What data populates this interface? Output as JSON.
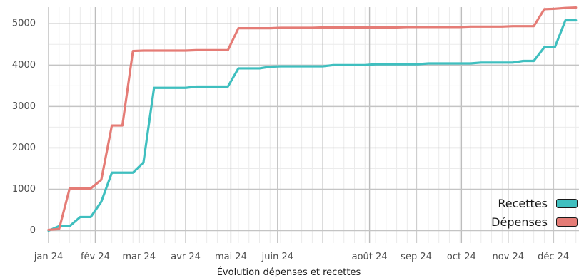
{
  "chart_data": {
    "type": "line",
    "title": "",
    "xlabel": "Évolution dépenses et recettes",
    "ylabel": "",
    "x": [
      "2024-01-01",
      "2024-01-08",
      "2024-01-15",
      "2024-01-22",
      "2024-01-29",
      "2024-02-05",
      "2024-02-12",
      "2024-02-19",
      "2024-02-26",
      "2024-03-04",
      "2024-03-11",
      "2024-03-18",
      "2024-03-25",
      "2024-04-01",
      "2024-04-08",
      "2024-04-15",
      "2024-04-22",
      "2024-04-29",
      "2024-05-06",
      "2024-05-13",
      "2024-05-20",
      "2024-05-27",
      "2024-06-03",
      "2024-06-10",
      "2024-06-17",
      "2024-06-24",
      "2024-07-01",
      "2024-07-08",
      "2024-07-15",
      "2024-07-22",
      "2024-07-29",
      "2024-08-05",
      "2024-08-12",
      "2024-08-19",
      "2024-08-26",
      "2024-09-02",
      "2024-09-09",
      "2024-09-16",
      "2024-09-23",
      "2024-09-30",
      "2024-10-07",
      "2024-10-14",
      "2024-10-21",
      "2024-10-28",
      "2024-11-04",
      "2024-11-11",
      "2024-11-18",
      "2024-11-25",
      "2024-12-02",
      "2024-12-09",
      "2024-12-16"
    ],
    "series": [
      {
        "name": "Recettes",
        "color": "#3fbfbf",
        "values": [
          0,
          110,
          110,
          330,
          330,
          700,
          1400,
          1400,
          1400,
          1650,
          3450,
          3450,
          3450,
          3450,
          3480,
          3480,
          3480,
          3480,
          3920,
          3920,
          3920,
          3960,
          3970,
          3970,
          3970,
          3970,
          3970,
          4000,
          4000,
          4000,
          4000,
          4020,
          4020,
          4020,
          4020,
          4020,
          4040,
          4040,
          4040,
          4040,
          4040,
          4060,
          4060,
          4060,
          4060,
          4100,
          4100,
          4430,
          4430,
          5080,
          5080
        ]
      },
      {
        "name": "Dépenses",
        "color": "#e57c76",
        "values": [
          20,
          40,
          1020,
          1020,
          1020,
          1230,
          2540,
          2540,
          4340,
          4350,
          4350,
          4350,
          4350,
          4350,
          4360,
          4360,
          4360,
          4360,
          4890,
          4890,
          4890,
          4890,
          4900,
          4900,
          4900,
          4900,
          4910,
          4910,
          4910,
          4910,
          4910,
          4910,
          4910,
          4910,
          4920,
          4920,
          4920,
          4920,
          4920,
          4920,
          4930,
          4930,
          4930,
          4930,
          4940,
          4940,
          4940,
          5350,
          5360,
          5380,
          5390
        ]
      }
    ],
    "y_ticks": [
      0,
      1000,
      2000,
      3000,
      4000,
      5000
    ],
    "y_tick_labels": [
      "0",
      "1000",
      "2000",
      "3000",
      "4000",
      "5000"
    ],
    "x_ticks": [
      "2024-01-01",
      "2024-02-01",
      "2024-03-01",
      "2024-04-01",
      "2024-05-01",
      "2024-06-01",
      "2024-07-01",
      "2024-08-01",
      "2024-09-01",
      "2024-10-01",
      "2024-11-01",
      "2024-12-01"
    ],
    "x_tick_labels": [
      "jan 24",
      "fév 24",
      "mar 24",
      "avr 24",
      "mai 24",
      "juin 24",
      "",
      "août 24",
      "sep 24",
      "oct 24",
      "nov 24",
      "déc 24"
    ],
    "ylim": [
      -300,
      5400
    ],
    "xlim": [
      "2024-01-01",
      "2024-12-18"
    ],
    "grid": true,
    "legend_position": "bottom-right"
  }
}
